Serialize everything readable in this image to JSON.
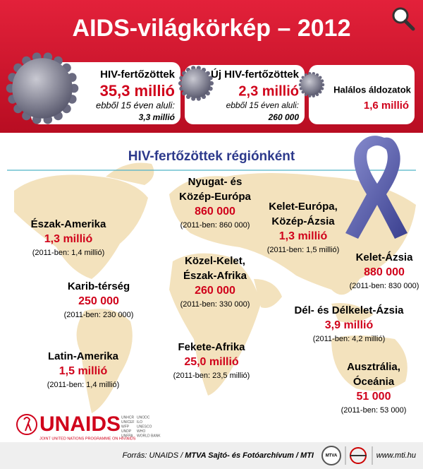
{
  "header": {
    "title": "AIDS-világkörkép – 2012"
  },
  "cards": [
    {
      "label": "HIV-fertőzöttek",
      "value": "35,3 millió",
      "sub_label": "ebből 15 éven aluli:",
      "sub_value": "3,3 millió"
    },
    {
      "label": "Új HIV-fertőzöttek",
      "value": "2,3 millió",
      "sub_label": "ebből 15 éven aluli:",
      "sub_value": "260 000"
    },
    {
      "label": "Halálos áldozatok",
      "value": "1,6 millió"
    }
  ],
  "section": {
    "title": "HIV-fertőzöttek régiónként"
  },
  "regions": [
    {
      "name": [
        "Nyugat- és",
        "Közép-Európa"
      ],
      "value": "860 000",
      "previous": "(2011-ben: 860 000)"
    },
    {
      "name": [
        "Észak-Amerika"
      ],
      "value": "1,3 millió",
      "previous": "(2011-ben: 1,4 millió)"
    },
    {
      "name": [
        "Kelet-Európa,",
        "Közép-Ázsia"
      ],
      "value": "1,3 millió",
      "previous": "(2011-ben: 1,5 millió)"
    },
    {
      "name": [
        "Kelet-Ázsia"
      ],
      "value": "880 000",
      "previous": "(2011-ben: 830 000)"
    },
    {
      "name": [
        "Közel-Kelet,",
        "Észak-Afrika"
      ],
      "value": "260 000",
      "previous": "(2011-ben: 330 000)"
    },
    {
      "name": [
        "Karib-térség"
      ],
      "value": "250 000",
      "previous": "(2011-ben: 230 000)"
    },
    {
      "name": [
        "Dél- és Délkelet-Ázsia"
      ],
      "value": "3,9 millió",
      "previous": "(2011-ben: 4,2 millió)"
    },
    {
      "name": [
        "Fekete-Afrika"
      ],
      "value": "25,0 millió",
      "previous": "(2011-ben: 23,5 millió)"
    },
    {
      "name": [
        "Latin-Amerika"
      ],
      "value": "1,5 millió",
      "previous": "(2011-ben: 1,4 millió)"
    },
    {
      "name": [
        "Ausztrália,",
        "Óceánia"
      ],
      "value": "51 000",
      "previous": "(2011-ben: 53 000)"
    }
  ],
  "footer": {
    "logo": "UNAIDS",
    "logo_tagline": "JOINT UNITED NATIONS PROGRAMME ON HIV/AIDS",
    "cosponsors": [
      "UNHCR",
      "UNICEF",
      "WFP",
      "UNDP",
      "UNFPA",
      "UNODC",
      "ILO",
      "UNESCO",
      "WHO",
      "WORLD BANK"
    ],
    "source_prefix": "Forrás: UNAIDS /",
    "source_bold": "MTVA Sajtó- és Fotóarchívum / MTI",
    "badge": "MTVA",
    "website": "www.mti.hu"
  }
}
